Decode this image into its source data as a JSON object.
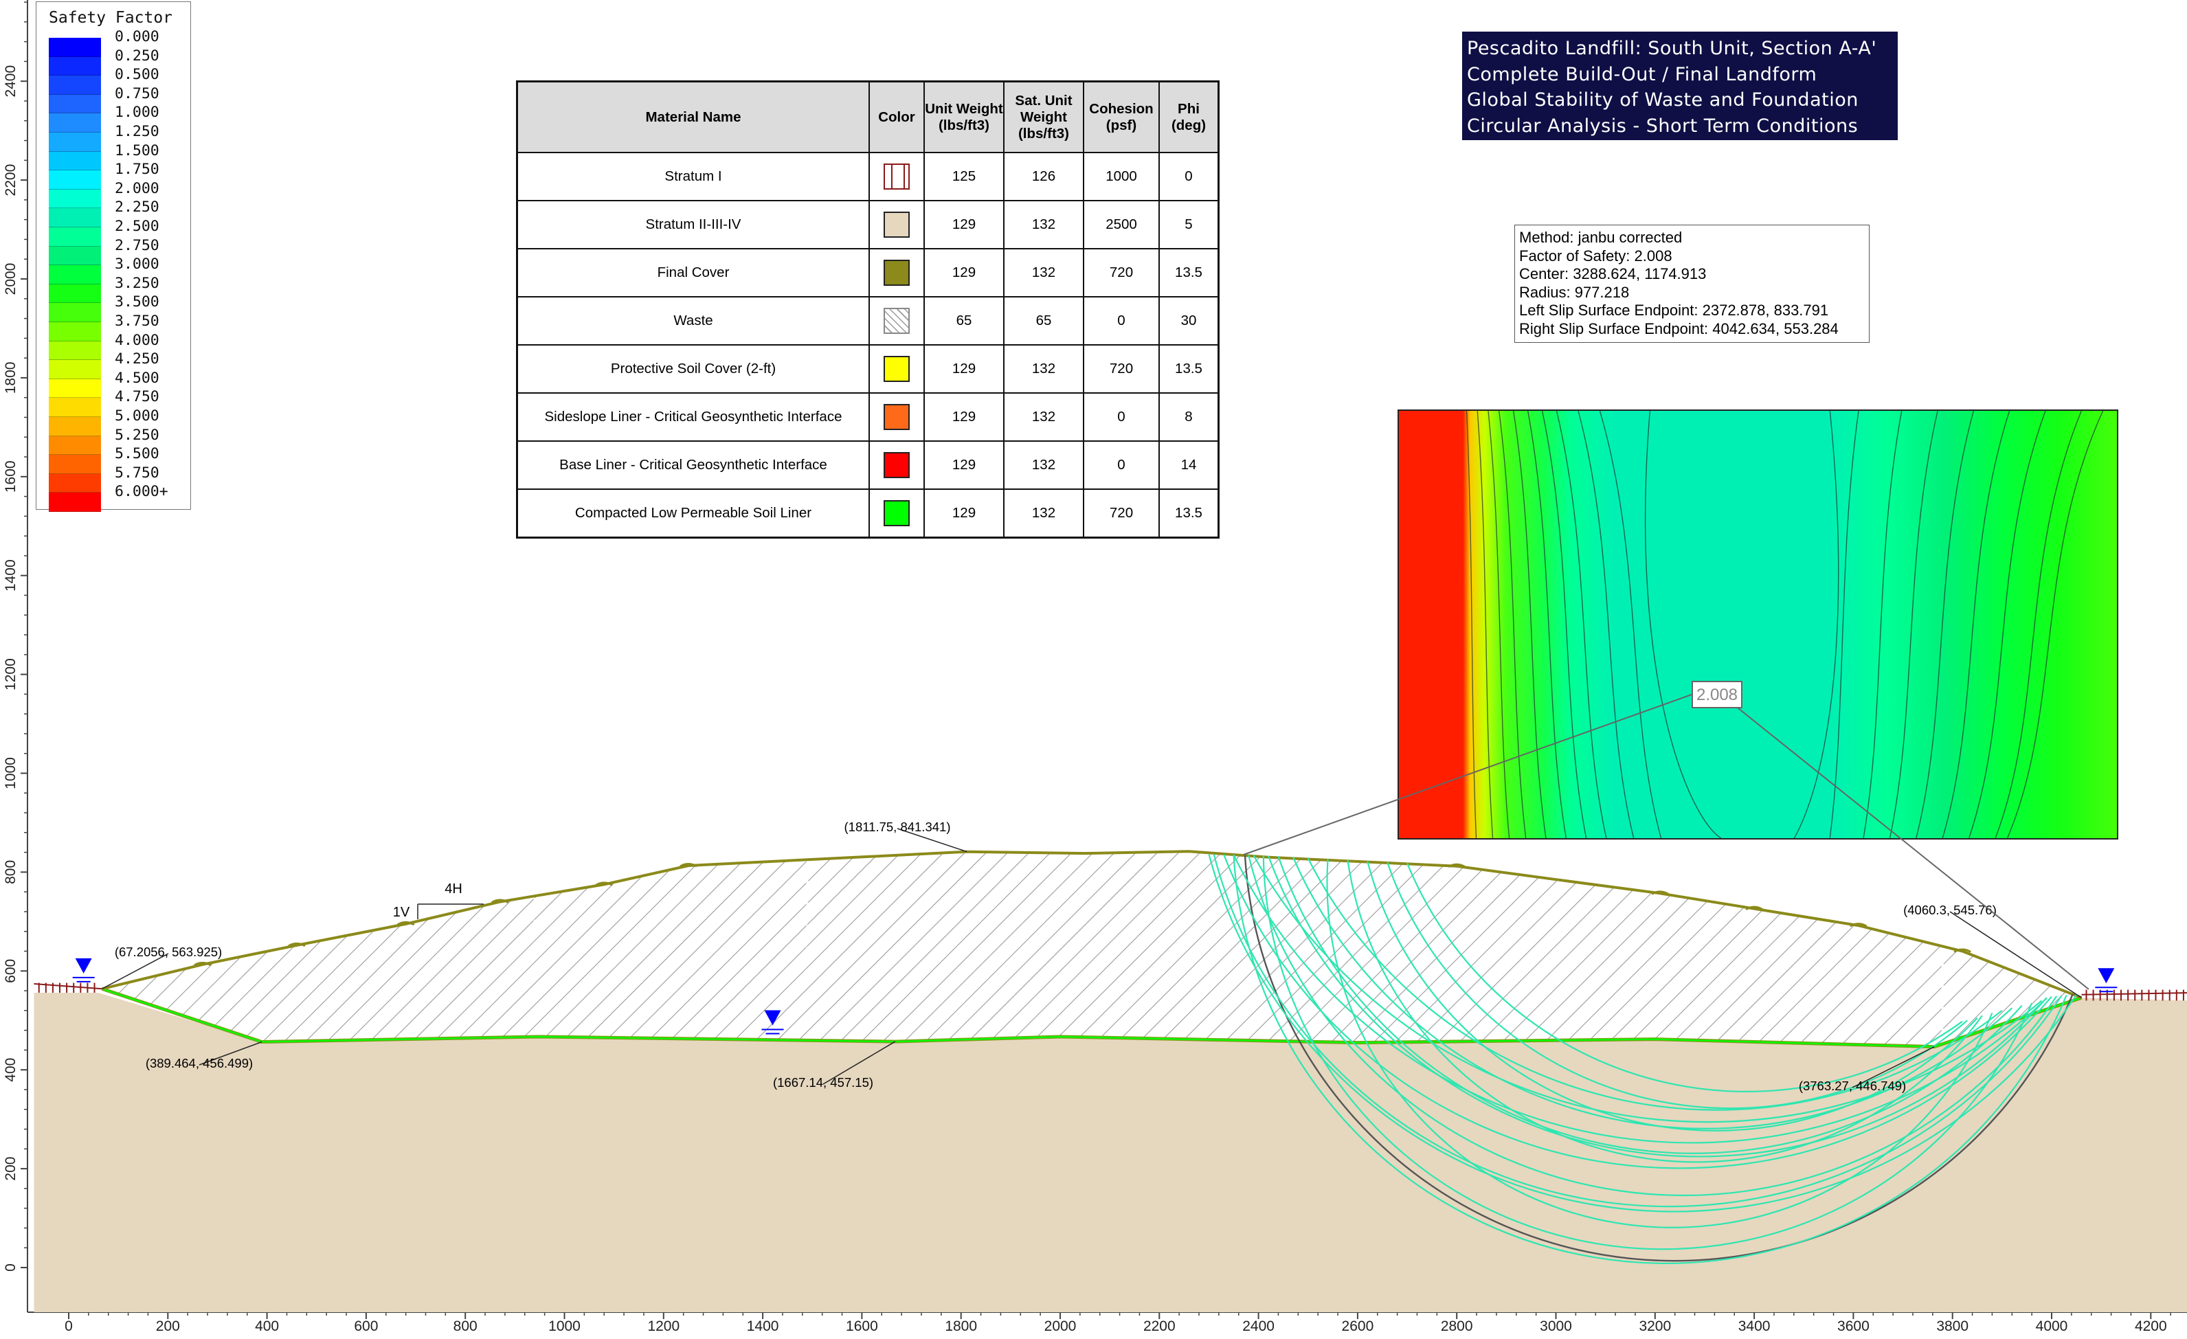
{
  "title_box": {
    "lines": [
      "Pescadito Landfill: South Unit, Section A-A'",
      "Complete Build-Out / Final Landform",
      "Global Stability of Waste and Foundation",
      "Circular Analysis - Short Term Conditions"
    ]
  },
  "method_box": {
    "lines": [
      "Method: janbu corrected",
      "Factor of Safety: 2.008",
      "Center: 3288.624, 1174.913",
      "Radius: 977.218",
      "Left Slip Surface Endpoint: 2372.878, 833.791",
      "Right Slip Surface Endpoint: 4042.634, 553.284"
    ]
  },
  "legend": {
    "title": "Safety Factor",
    "items": [
      {
        "label": "0.000",
        "color": "#0000ff"
      },
      {
        "label": "0.250",
        "color": "#0a28ff"
      },
      {
        "label": "0.500",
        "color": "#1446ff"
      },
      {
        "label": "0.750",
        "color": "#1e64ff"
      },
      {
        "label": "1.000",
        "color": "#1e8cff"
      },
      {
        "label": "1.250",
        "color": "#14aaff"
      },
      {
        "label": "1.500",
        "color": "#00c8ff"
      },
      {
        "label": "1.750",
        "color": "#00f0ff"
      },
      {
        "label": "2.000",
        "color": "#00ffd2"
      },
      {
        "label": "2.250",
        "color": "#00f0b4"
      },
      {
        "label": "2.500",
        "color": "#00ff96"
      },
      {
        "label": "2.750",
        "color": "#00f078"
      },
      {
        "label": "3.000",
        "color": "#00ff3c"
      },
      {
        "label": "3.250",
        "color": "#14ff14"
      },
      {
        "label": "3.500",
        "color": "#46ff0a"
      },
      {
        "label": "3.750",
        "color": "#78ff00"
      },
      {
        "label": "4.000",
        "color": "#aaff00"
      },
      {
        "label": "4.250",
        "color": "#d2ff00"
      },
      {
        "label": "4.500",
        "color": "#ffff00"
      },
      {
        "label": "4.750",
        "color": "#ffdc00"
      },
      {
        "label": "5.000",
        "color": "#ffb400"
      },
      {
        "label": "5.250",
        "color": "#ff8c00"
      },
      {
        "label": "5.500",
        "color": "#ff6400"
      },
      {
        "label": "5.750",
        "color": "#ff3c00"
      },
      {
        "label": "6.000+",
        "color": "#ff0000"
      }
    ]
  },
  "material_table": {
    "headers": [
      "Material Name",
      "Color",
      "Unit Weight (lbs/ft3)",
      "Sat. Unit Weight (lbs/ft3)",
      "Cohesion (psf)",
      "Phi (deg)"
    ],
    "rows": [
      {
        "name": "Stratum I",
        "color": "#ffffff",
        "swatch": "stratum-i-pattern",
        "unit_weight": "125",
        "sat_unit_weight": "126",
        "cohesion": "1000",
        "phi": "0"
      },
      {
        "name": "Stratum II-III-IV",
        "color": "#e6d7bf",
        "swatch": "solid",
        "unit_weight": "129",
        "sat_unit_weight": "132",
        "cohesion": "2500",
        "phi": "5"
      },
      {
        "name": "Final Cover",
        "color": "#8b8a1a",
        "swatch": "solid",
        "unit_weight": "129",
        "sat_unit_weight": "132",
        "cohesion": "720",
        "phi": "13.5"
      },
      {
        "name": "Waste",
        "color": "#ffffff",
        "swatch": "hatch",
        "unit_weight": "65",
        "sat_unit_weight": "65",
        "cohesion": "0",
        "phi": "30"
      },
      {
        "name": "Protective Soil Cover (2-ft)",
        "color": "#ffff00",
        "swatch": "solid",
        "unit_weight": "129",
        "sat_unit_weight": "132",
        "cohesion": "720",
        "phi": "13.5"
      },
      {
        "name": "Sideslope Liner - Critical Geosynthetic Interface",
        "color": "#ff6a1a",
        "swatch": "solid",
        "unit_weight": "129",
        "sat_unit_weight": "132",
        "cohesion": "0",
        "phi": "8"
      },
      {
        "name": "Base Liner - Critical Geosynthetic Interface",
        "color": "#ff0000",
        "swatch": "solid",
        "unit_weight": "129",
        "sat_unit_weight": "132",
        "cohesion": "0",
        "phi": "14"
      },
      {
        "name": "Compacted Low Permeable Soil Liner",
        "color": "#00ff00",
        "swatch": "solid",
        "unit_weight": "129",
        "sat_unit_weight": "132",
        "cohesion": "720",
        "phi": "13.5"
      }
    ]
  },
  "axes": {
    "x_ticks": [
      "0",
      "200",
      "400",
      "600",
      "800",
      "1000",
      "1200",
      "1400",
      "1600",
      "1800",
      "2000",
      "2200",
      "2400",
      "2600",
      "2800",
      "3000",
      "3200",
      "3400",
      "3600",
      "3800",
      "4000",
      "4200"
    ],
    "y_ticks": [
      "0",
      "200",
      "400",
      "600",
      "800",
      "1000",
      "1200",
      "1400",
      "1600",
      "1800",
      "2000",
      "2200",
      "2400"
    ]
  },
  "annotations": {
    "pt_left_crest": "(67.2056, 563.925)",
    "pt_left_toe": "(389.464, 456.499)",
    "pt_top": "(1811.75, 841.341)",
    "pt_base_mid": "(1667.14, 457.15)",
    "pt_right_toe": "(3763.27, 446.749)",
    "pt_right_crest": "(4060.3, 545.76)",
    "slope_v": "1V",
    "slope_h": "4H",
    "fs_label": "2.008"
  },
  "colors": {
    "ground": "#e6d7bf",
    "cover": "#8b8a1a",
    "liner": "#00ff00",
    "slip_surface": "#2ee6b0",
    "critical_surface": "#555555",
    "water_marker": "#0000ff"
  }
}
